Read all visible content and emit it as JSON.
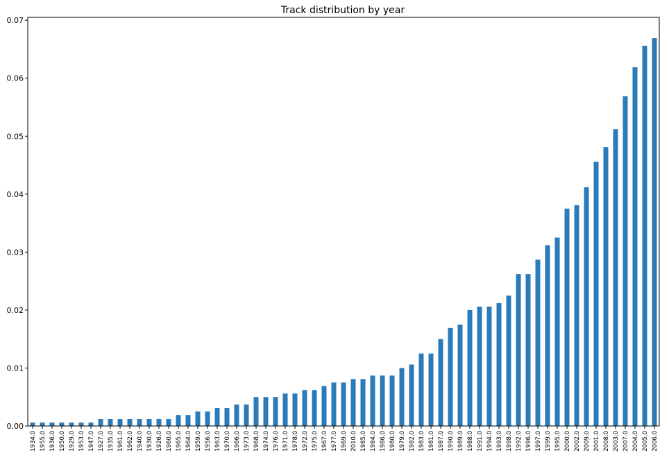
{
  "chart_data": {
    "type": "bar",
    "title": "Track distribution by year",
    "xlabel": "",
    "ylabel": "",
    "ylim": [
      0,
      0.0705
    ],
    "yticks": [
      "0.00",
      "0.01",
      "0.02",
      "0.03",
      "0.04",
      "0.05",
      "0.06",
      "0.07"
    ],
    "grid": false,
    "bar_color": "#2b7bba",
    "categories": [
      "1934.0",
      "1955.0",
      "1936.0",
      "1950.0",
      "1929.0",
      "1953.0",
      "1947.0",
      "1927.0",
      "1935.0",
      "1961.0",
      "1962.0",
      "1940.0",
      "1930.0",
      "1926.0",
      "1960.0",
      "1965.0",
      "1964.0",
      "1959.0",
      "1956.0",
      "1963.0",
      "1970.0",
      "1966.0",
      "1973.0",
      "1968.0",
      "1974.0",
      "1976.0",
      "1971.0",
      "1978.0",
      "1972.0",
      "1975.0",
      "1967.0",
      "1977.0",
      "1969.0",
      "2010.0",
      "1985.0",
      "1984.0",
      "1986.0",
      "1980.0",
      "1979.0",
      "1982.0",
      "1983.0",
      "1981.0",
      "1987.0",
      "1990.0",
      "1989.0",
      "1988.0",
      "1991.0",
      "1994.0",
      "1993.0",
      "1998.0",
      "1992.0",
      "1996.0",
      "1997.0",
      "1999.0",
      "1995.0",
      "2000.0",
      "2002.0",
      "2009.0",
      "2001.0",
      "2008.0",
      "2003.0",
      "2007.0",
      "2004.0",
      "2005.0",
      "2006.0"
    ],
    "values": [
      0.0006,
      0.0006,
      0.0006,
      0.0006,
      0.0006,
      0.0006,
      0.0006,
      0.0012,
      0.0012,
      0.0012,
      0.0012,
      0.0012,
      0.0012,
      0.0012,
      0.0012,
      0.0019,
      0.0019,
      0.0025,
      0.0025,
      0.0031,
      0.0031,
      0.0037,
      0.0037,
      0.005,
      0.005,
      0.005,
      0.0056,
      0.0056,
      0.0062,
      0.0062,
      0.0069,
      0.0075,
      0.0075,
      0.0081,
      0.0081,
      0.0087,
      0.0087,
      0.0087,
      0.01,
      0.0106,
      0.0125,
      0.0125,
      0.015,
      0.0169,
      0.0175,
      0.02,
      0.0206,
      0.0206,
      0.0212,
      0.0225,
      0.0262,
      0.0262,
      0.0287,
      0.0312,
      0.0325,
      0.0375,
      0.0381,
      0.0412,
      0.0456,
      0.0481,
      0.0512,
      0.0569,
      0.0619,
      0.0656,
      0.0669
    ]
  }
}
